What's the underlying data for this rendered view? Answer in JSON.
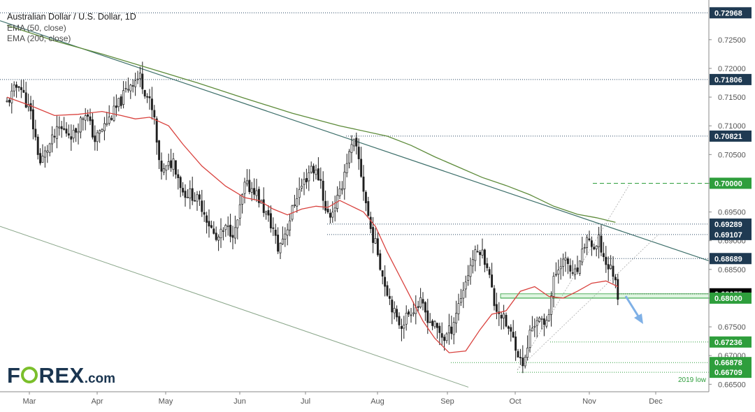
{
  "title": "Australian Dollar / U.S. Dollar, 1D",
  "indicators": [
    {
      "label": "EMA (50, close)",
      "color": "#d9423e"
    },
    {
      "label": "EMA (200, close)",
      "color": "#5d8b3a"
    }
  ],
  "logo": {
    "text_a": "F",
    "text_b": "REX",
    "suffix": ".com",
    "brand_color": "#1a3550",
    "accent": "#7bbf2b"
  },
  "chart_data": {
    "type": "candlestick",
    "ylim": [
      0.6637,
      0.7313
    ],
    "x_ticks": [
      "Mar",
      "Apr",
      "May",
      "Jun",
      "Jul",
      "Aug",
      "Sep",
      "Oct",
      "Nov",
      "Dec"
    ],
    "y_ticks": [
      0.665,
      0.67,
      0.675,
      0.68,
      0.685,
      0.69,
      0.695,
      0.7,
      0.705,
      0.71,
      0.715,
      0.72,
      0.725
    ],
    "y_tick_labels": [
      "0.66500",
      "0.67000",
      "0.67500",
      "0.68000",
      "0.68500",
      "0.69000",
      "0.69500",
      "0.70000",
      "0.70500",
      "0.71000",
      "0.71500",
      "0.72000",
      "0.72500"
    ],
    "level_labels": [
      {
        "value": 0.72968,
        "label": "0.72968",
        "style": "dotted"
      },
      {
        "value": 0.71806,
        "label": "0.71806",
        "style": "dotted"
      },
      {
        "value": 0.70821,
        "label": "0.70821",
        "style": "dotted"
      },
      {
        "value": 0.7,
        "label": "0.70000",
        "style": "dashed-green"
      },
      {
        "value": 0.69289,
        "label": "0.69289",
        "style": "dotted"
      },
      {
        "value": 0.69107,
        "label": "0.69107",
        "style": "dotted"
      },
      {
        "value": 0.68689,
        "label": "0.68689",
        "style": "dotted"
      },
      {
        "value": 0.68075,
        "label": "0.68075",
        "style": "current"
      },
      {
        "value": 0.68,
        "label": "0.68000",
        "style": "green-zone"
      },
      {
        "value": 0.67236,
        "label": "0.67236",
        "style": "dotted-green"
      },
      {
        "value": 0.66878,
        "label": "0.66878",
        "style": "dotted-green"
      },
      {
        "value": 0.66709,
        "label": "0.66709",
        "style": "dotted-green"
      }
    ],
    "annotation": "2019 low",
    "colors": {
      "up": "#ffffff",
      "down": "#1e1e1e",
      "ema50": "#d9423e",
      "ema200": "#5d8b3a",
      "trend": "#3d6f6a",
      "channel": "#8aa68a",
      "green": "#2e9e3c",
      "arrow": "#7fb0e6"
    },
    "ema50": [
      [
        0,
        0.715
      ],
      [
        10,
        0.7135
      ],
      [
        20,
        0.7118
      ],
      [
        30,
        0.712
      ],
      [
        40,
        0.7125
      ],
      [
        48,
        0.7118
      ],
      [
        54,
        0.7112
      ],
      [
        60,
        0.7115
      ],
      [
        68,
        0.71
      ],
      [
        74,
        0.7068
      ],
      [
        82,
        0.703
      ],
      [
        92,
        0.6995
      ],
      [
        100,
        0.6975
      ],
      [
        106,
        0.697
      ],
      [
        112,
        0.6955
      ],
      [
        118,
        0.6945
      ],
      [
        124,
        0.6955
      ],
      [
        130,
        0.696
      ],
      [
        135,
        0.6958
      ],
      [
        140,
        0.697
      ],
      [
        145,
        0.696
      ],
      [
        150,
        0.695
      ],
      [
        155,
        0.6925
      ],
      [
        160,
        0.688
      ],
      [
        165,
        0.684
      ],
      [
        170,
        0.68
      ],
      [
        175,
        0.676
      ],
      [
        180,
        0.673
      ],
      [
        186,
        0.6705
      ],
      [
        193,
        0.6708
      ],
      [
        199,
        0.6745
      ],
      [
        204,
        0.6772
      ],
      [
        210,
        0.6778
      ],
      [
        216,
        0.6812
      ],
      [
        222,
        0.682
      ],
      [
        228,
        0.6803
      ],
      [
        234,
        0.68
      ],
      [
        240,
        0.6812
      ],
      [
        246,
        0.6826
      ],
      [
        252,
        0.683
      ],
      [
        257,
        0.682
      ]
    ],
    "ema200": [
      [
        0,
        0.7275
      ],
      [
        20,
        0.7248
      ],
      [
        40,
        0.7225
      ],
      [
        60,
        0.72
      ],
      [
        80,
        0.7175
      ],
      [
        100,
        0.7148
      ],
      [
        120,
        0.7122
      ],
      [
        140,
        0.71
      ],
      [
        160,
        0.7082
      ],
      [
        170,
        0.7066
      ],
      [
        180,
        0.7046
      ],
      [
        190,
        0.7028
      ],
      [
        200,
        0.701
      ],
      [
        210,
        0.6996
      ],
      [
        220,
        0.698
      ],
      [
        230,
        0.696
      ],
      [
        240,
        0.6946
      ],
      [
        248,
        0.694
      ],
      [
        256,
        0.6932
      ]
    ]
  }
}
